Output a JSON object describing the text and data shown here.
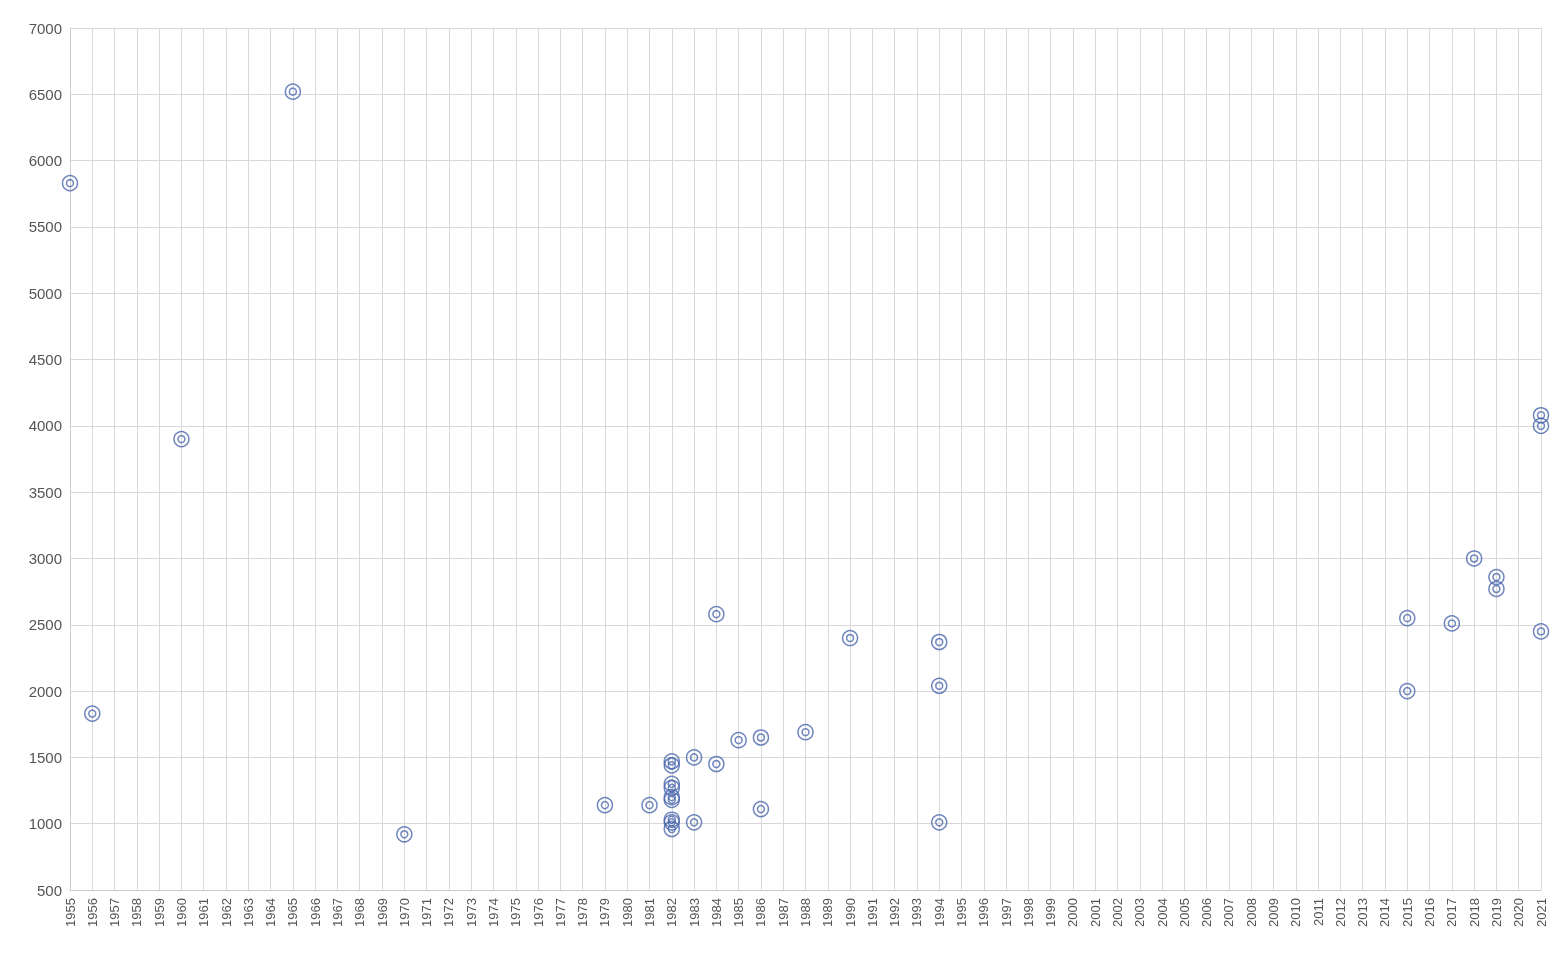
{
  "chart_data": {
    "type": "scatter",
    "x": [
      1955,
      1956,
      1960,
      1965,
      1970,
      1979,
      1981,
      1982,
      1982,
      1982,
      1982,
      1982,
      1982,
      1982,
      1982,
      1982,
      1983,
      1983,
      1984,
      1984,
      1985,
      1986,
      1986,
      1988,
      1990,
      1994,
      1994,
      1994,
      2015,
      2015,
      2017,
      2018,
      2019,
      2019,
      2021,
      2021,
      2021
    ],
    "series": [
      {
        "color": "#4a66ad",
        "values": [
          5830,
          1830,
          3900,
          6520,
          920,
          1140,
          1140,
          1470,
          1440,
          1300,
          1270,
          1200,
          1180,
          1030,
          1010,
          960,
          1500,
          1010,
          2580,
          1450,
          1630,
          1650,
          1110,
          1690,
          2400,
          2370,
          2040,
          1010,
          2550,
          2000,
          2510,
          3000,
          2860,
          2770,
          4080,
          4000,
          2450
        ]
      }
    ],
    "xlim": [
      1955,
      2021
    ],
    "xticks": [
      1955,
      1956,
      1957,
      1958,
      1959,
      1960,
      1961,
      1962,
      1963,
      1964,
      1965,
      1966,
      1967,
      1968,
      1969,
      1970,
      1971,
      1972,
      1973,
      1974,
      1975,
      1976,
      1977,
      1978,
      1979,
      1980,
      1981,
      1982,
      1983,
      1984,
      1985,
      1986,
      1987,
      1988,
      1989,
      1990,
      1991,
      1992,
      1993,
      1994,
      1995,
      1996,
      1997,
      1998,
      1999,
      2000,
      2001,
      2002,
      2003,
      2004,
      2005,
      2006,
      2007,
      2008,
      2009,
      2010,
      2011,
      2012,
      2013,
      2014,
      2015,
      2016,
      2017,
      2018,
      2019,
      2020,
      2021
    ],
    "ylim": [
      500,
      7000
    ],
    "yticks": [
      500,
      1000,
      1500,
      2000,
      2500,
      3000,
      3500,
      4000,
      4500,
      5000,
      5500,
      6000,
      6500,
      7000
    ],
    "grid": true,
    "marker": "circle"
  }
}
